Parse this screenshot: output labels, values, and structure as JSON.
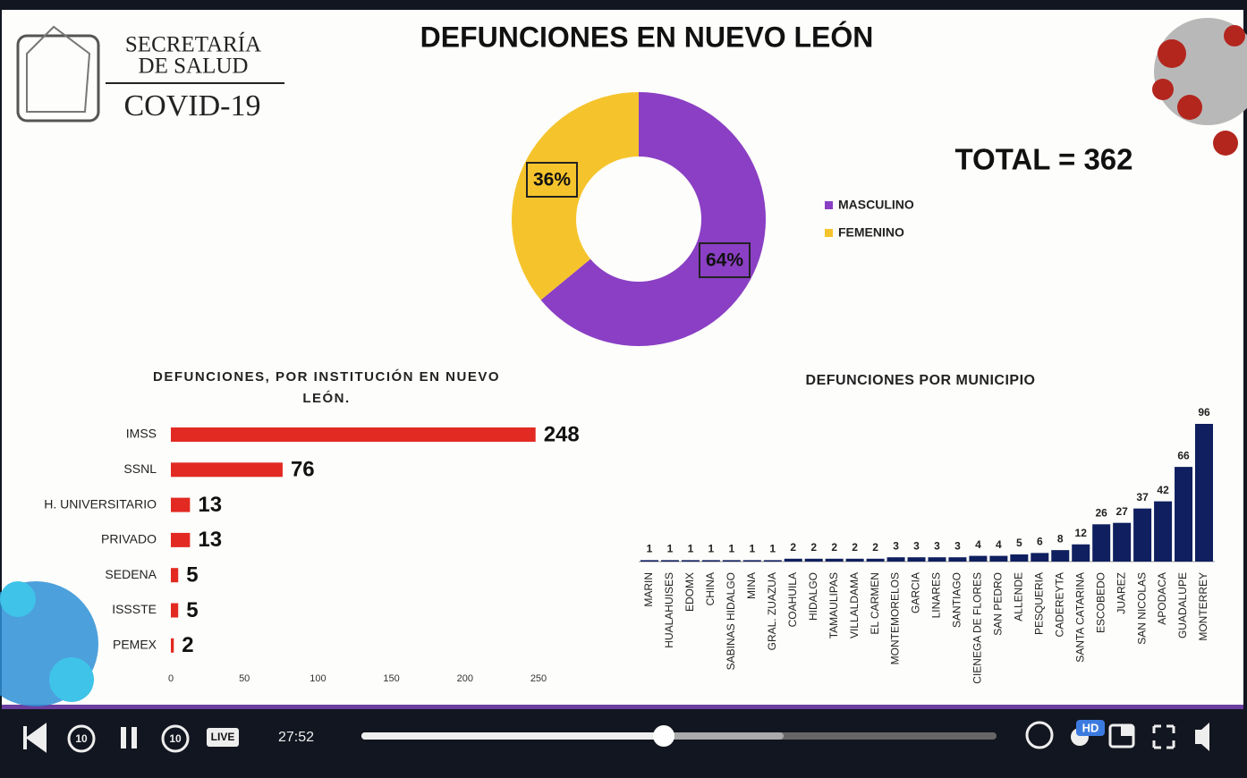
{
  "header": {
    "logo": [
      "SECRETARÍA",
      "DE SALUD",
      "COVID-19"
    ],
    "title": "DEFUNCIONES EN NUEVO LEÓN",
    "total": "TOTAL = 362"
  },
  "chart_data": [
    {
      "type": "pie",
      "categories": [
        "MASCULINO",
        "FEMENINO"
      ],
      "values": [
        64,
        36
      ],
      "value_labels": [
        "64%",
        "36%"
      ],
      "colors": [
        "#8a3fc4",
        "#f5c42c"
      ],
      "legend": "right"
    },
    {
      "type": "bar",
      "horizontal": true,
      "title": "DEFUNCIONES, POR INSTITUCIÓN EN NUEVO LEÓN.",
      "categories": [
        "IMSS",
        "SSNL",
        "H. UNIVERSITARIO",
        "PRIVADO",
        "SEDENA",
        "ISSSTE",
        "PEMEX"
      ],
      "values": [
        248,
        76,
        13,
        13,
        5,
        5,
        2
      ],
      "color": "#e22a22",
      "xlim": [
        0,
        250
      ],
      "xticks": [
        0,
        50,
        100,
        150,
        200,
        250
      ]
    },
    {
      "type": "bar",
      "title": "DEFUNCIONES POR MUNICIPIO",
      "categories": [
        "MARIN",
        "HUALAHUISES",
        "EDOMX",
        "CHINA",
        "SABINAS HIDALGO",
        "MINA",
        "GRAL. ZUAZUA",
        "COAHUILA",
        "HIDALGO",
        "TAMAULIPAS",
        "VILLALDAMA",
        "EL CARMEN",
        "MONTEMORELOS",
        "GARCIA",
        "LINARES",
        "SANTIAGO",
        "CIENEGA DE FLORES",
        "SAN PEDRO",
        "ALLENDE",
        "PESQUERIA",
        "CADEREYTA",
        "SANTA CATARINA",
        "ESCOBEDO",
        "JUAREZ",
        "SAN NICOLAS",
        "APODACA",
        "GUADALUPE",
        "MONTERREY"
      ],
      "values": [
        1,
        1,
        1,
        1,
        1,
        1,
        1,
        2,
        2,
        2,
        2,
        2,
        3,
        3,
        3,
        3,
        4,
        4,
        5,
        6,
        8,
        12,
        26,
        27,
        37,
        42,
        66,
        96
      ],
      "color": "#0f1f5f"
    }
  ],
  "player": {
    "time": "27:52",
    "live": "LIVE",
    "hd": "HD"
  }
}
